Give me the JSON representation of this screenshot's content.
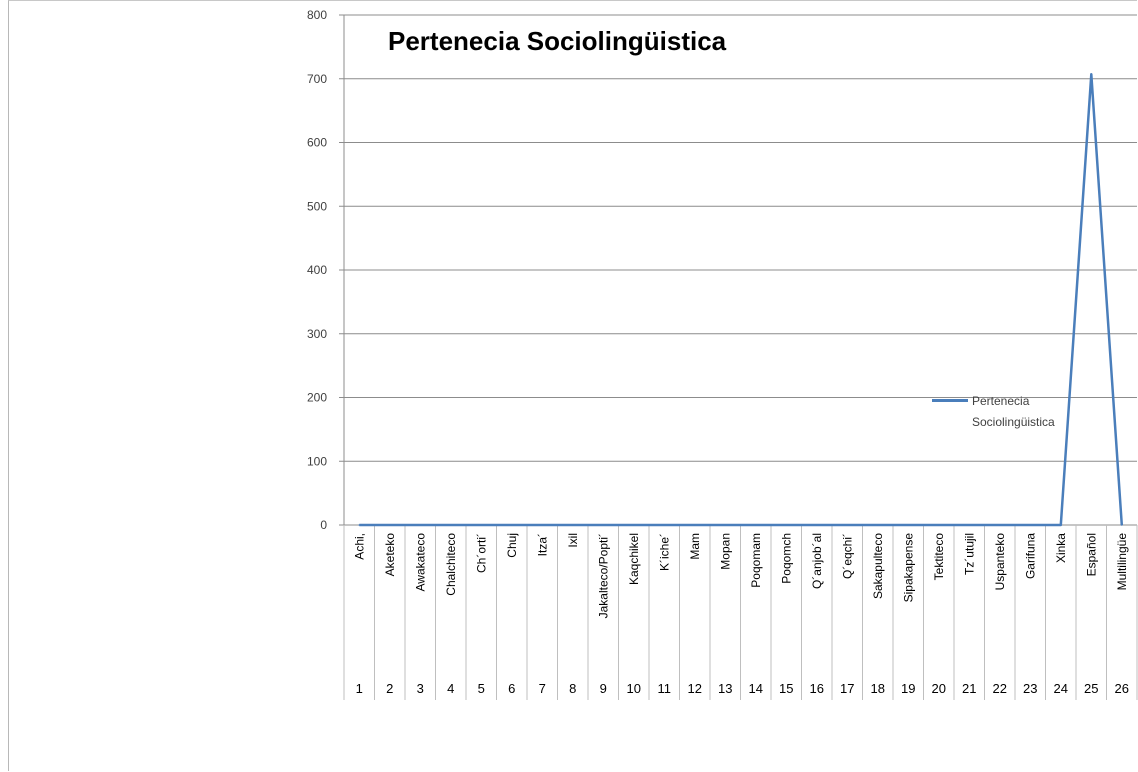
{
  "chart_data": {
    "type": "line",
    "title": "Pertenecia Sociolingüistica",
    "xlabel": "",
    "ylabel": "",
    "ylim": [
      0,
      800
    ],
    "y_ticks": [
      0,
      100,
      200,
      300,
      400,
      500,
      600,
      700,
      800
    ],
    "grid": true,
    "legend_position": "right",
    "categories": [
      "Achi,",
      "Aketeko",
      "Awakateco",
      "Chalchiteco",
      "Ch´orti´",
      "Chuj",
      "Itza´",
      "Ixil",
      "Jakalteco/Popti´",
      "Kaqchikel",
      "K´iche´",
      "Mam",
      "Mopan",
      "Poqomam",
      "Poqomch",
      "Q´anjob´al",
      "Q´eqchi´",
      "Sakapulteco",
      "Sipakapense",
      "Tektiteco",
      "Tz´utujil",
      "Uspanteko",
      "Garifuna",
      "Xinka",
      "Español",
      "Multilingüe"
    ],
    "category_numbers": [
      "1",
      "2",
      "3",
      "4",
      "5",
      "6",
      "7",
      "8",
      "9",
      "10",
      "11",
      "12",
      "13",
      "14",
      "15",
      "16",
      "17",
      "18",
      "19",
      "20",
      "21",
      "22",
      "23",
      "24",
      "25",
      "26"
    ],
    "series": [
      {
        "name": "Pertenecia Sociolingüistica",
        "color": "#4a7ebb",
        "values": [
          0,
          0,
          0,
          0,
          0,
          0,
          0,
          0,
          0,
          0,
          0,
          0,
          0,
          0,
          0,
          0,
          0,
          0,
          0,
          0,
          0,
          0,
          0,
          0,
          707,
          0
        ]
      }
    ]
  }
}
